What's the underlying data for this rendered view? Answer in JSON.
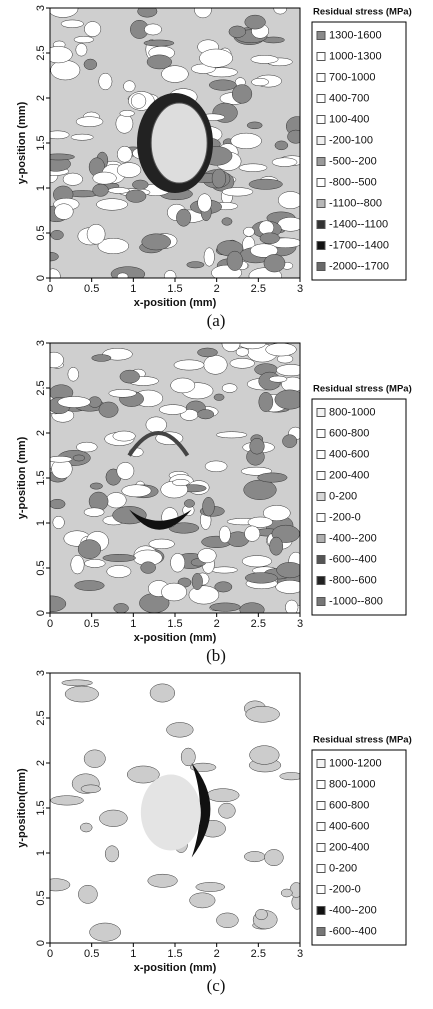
{
  "chart_data": [
    {
      "type": "contour",
      "caption": "(a)",
      "xlabel": "x-position (mm)",
      "ylabel": "y-position (mm)",
      "xlim": [
        0,
        3
      ],
      "xticks": [
        0,
        0.5,
        1,
        1.5,
        2,
        2.5,
        3
      ],
      "ylim": [
        0,
        3
      ],
      "yticks": [
        0,
        0.5,
        1,
        1.5,
        2,
        2.5,
        3
      ],
      "legend": {
        "title": "Residual stress (MPa)",
        "labels": [
          "1300-1600",
          "1000-1300",
          "700-1000",
          "400-700",
          "100-400",
          "-200-100",
          "-500--200",
          "-800--500",
          "-1100--800",
          "-1400--1100",
          "-1700--1400",
          "-2000--1700"
        ],
        "colors": [
          "#8a8a8a",
          "#ffffff",
          "#ffffff",
          "#ffffff",
          "#ffffff",
          "#f0f0f0",
          "#9a9a9a",
          "#ffffff",
          "#b8b8b8",
          "#333333",
          "#111111",
          "#6a6a6a"
        ]
      }
    },
    {
      "type": "contour",
      "caption": "(b)",
      "xlabel": "x-position (mm)",
      "ylabel": "y-position (mm)",
      "xlim": [
        0,
        3
      ],
      "xticks": [
        0,
        0.5,
        1,
        1.5,
        2,
        2.5,
        3
      ],
      "ylim": [
        0,
        3
      ],
      "yticks": [
        0,
        0.5,
        1,
        1.5,
        2,
        2.5,
        3
      ],
      "legend": {
        "title": "Residual stress (MPa)",
        "labels": [
          "800-1000",
          "600-800",
          "400-600",
          "200-400",
          "0-200",
          "-200-0",
          "-400--200",
          "-600--400",
          "-800--600",
          "-1000--800"
        ],
        "colors": [
          "#f4f4f4",
          "#ffffff",
          "#ffffff",
          "#ffffff",
          "#d8d8d8",
          "#ffffff",
          "#b0b0b0",
          "#555555",
          "#222222",
          "#777777"
        ]
      }
    },
    {
      "type": "contour",
      "caption": "(c)",
      "xlabel": "x-position (mm)",
      "ylabel": "y-position(mm)",
      "xlim": [
        0,
        3
      ],
      "xticks": [
        0,
        0.5,
        1,
        1.5,
        2,
        2.5,
        3
      ],
      "ylim": [
        0,
        3
      ],
      "yticks": [
        0,
        0.5,
        1,
        1.5,
        2,
        2.5,
        3
      ],
      "legend": {
        "title": "Residual stress (MPa)",
        "labels": [
          "1000-1200",
          "800-1000",
          "600-800",
          "400-600",
          "200-400",
          "0-200",
          "-200-0",
          "-400--200",
          "-600--400"
        ],
        "colors": [
          "#f4f4f4",
          "#ffffff",
          "#ffffff",
          "#ffffff",
          "#ffffff",
          "#ffffff",
          "#ffffff",
          "#111111",
          "#777777"
        ]
      }
    }
  ]
}
